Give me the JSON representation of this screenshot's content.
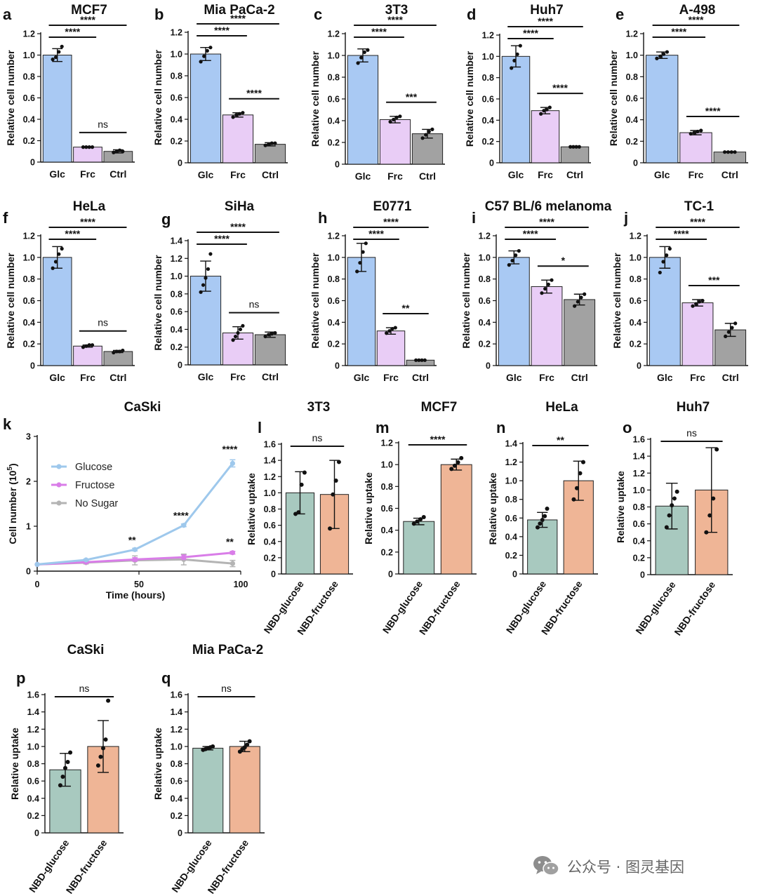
{
  "colors": {
    "glucose_bar": "#a9c9f3",
    "fructose_bar": "#e9cdf6",
    "control_bar": "#a2a2a2",
    "nbd_glucose": "#a8c9bf",
    "nbd_fructose": "#efb596",
    "line_glucose": "#9ec8ec",
    "line_fructose": "#d97de8",
    "line_nosugar": "#b4b4b4"
  },
  "watermark": {
    "text": "公众号 · 图灵基因"
  },
  "chart_data": [
    {
      "id": "a",
      "panel": "a",
      "type": "bar",
      "title": "MCF7",
      "ylabel": "Relative cell number",
      "ylim": [
        0,
        1.2
      ],
      "yticks": [
        0,
        0.2,
        0.4,
        0.6,
        0.8,
        1.0,
        1.2
      ],
      "categories": [
        "Glc",
        "Frc",
        "Ctrl"
      ],
      "values": [
        1.0,
        0.14,
        0.1
      ],
      "errors": [
        0.06,
        0.005,
        0.015
      ],
      "points": [
        [
          0.96,
          0.98,
          1.03,
          1.08
        ],
        [
          0.14,
          0.14,
          0.14,
          0.14
        ],
        [
          0.09,
          0.1,
          0.11,
          0.1
        ]
      ],
      "significance": [
        {
          "from": 0,
          "to": 2,
          "label": "****"
        },
        {
          "from": 0,
          "to": 1,
          "label": "****"
        },
        {
          "from": 1,
          "to": 2,
          "label": "ns"
        }
      ]
    },
    {
      "id": "b",
      "panel": "b",
      "type": "bar",
      "title": "Mia PaCa-2",
      "ylabel": "Relative cell number",
      "ylim": [
        0,
        1.2
      ],
      "yticks": [
        0,
        0.2,
        0.4,
        0.6,
        0.8,
        1.0,
        1.2
      ],
      "categories": [
        "Glc",
        "Frc",
        "Ctrl"
      ],
      "values": [
        1.0,
        0.44,
        0.17
      ],
      "errors": [
        0.06,
        0.02,
        0.015
      ],
      "points": [
        [
          0.93,
          0.98,
          1.03,
          1.06
        ],
        [
          0.42,
          0.44,
          0.45,
          0.46
        ],
        [
          0.16,
          0.17,
          0.18,
          0.18
        ]
      ],
      "significance": [
        {
          "from": 0,
          "to": 2,
          "label": "****"
        },
        {
          "from": 0,
          "to": 1,
          "label": "****"
        },
        {
          "from": 1,
          "to": 2,
          "label": "****"
        }
      ]
    },
    {
      "id": "c",
      "panel": "c",
      "type": "bar",
      "title": "3T3",
      "ylabel": "Relative cell number",
      "ylim": [
        0,
        1.2
      ],
      "yticks": [
        0,
        0.2,
        0.4,
        0.6,
        0.8,
        1.0,
        1.2
      ],
      "categories": [
        "Glc",
        "Frc",
        "Ctrl"
      ],
      "values": [
        1.0,
        0.41,
        0.28
      ],
      "errors": [
        0.06,
        0.03,
        0.04
      ],
      "points": [
        [
          0.93,
          0.98,
          1.03,
          1.05
        ],
        [
          0.39,
          0.41,
          0.43,
          0.44
        ],
        [
          0.24,
          0.27,
          0.3,
          0.32
        ]
      ],
      "significance": [
        {
          "from": 0,
          "to": 2,
          "label": "****"
        },
        {
          "from": 0,
          "to": 1,
          "label": "****"
        },
        {
          "from": 1,
          "to": 2,
          "label": "***"
        }
      ]
    },
    {
      "id": "d",
      "panel": "d",
      "type": "bar",
      "title": "Huh7",
      "ylabel": "Relative cell number",
      "ylim": [
        0,
        1.2
      ],
      "yticks": [
        0,
        0.2,
        0.4,
        0.6,
        0.8,
        1.0,
        1.2
      ],
      "categories": [
        "Glc",
        "Frc",
        "Ctrl"
      ],
      "values": [
        1.0,
        0.49,
        0.15
      ],
      "errors": [
        0.1,
        0.03,
        0.005
      ],
      "points": [
        [
          0.89,
          0.96,
          1.02,
          1.1
        ],
        [
          0.46,
          0.49,
          0.5,
          0.52
        ],
        [
          0.15,
          0.15,
          0.15,
          0.15
        ]
      ],
      "significance": [
        {
          "from": 0,
          "to": 2,
          "label": "****"
        },
        {
          "from": 0,
          "to": 1,
          "label": "****"
        },
        {
          "from": 1,
          "to": 2,
          "label": "****"
        }
      ]
    },
    {
      "id": "e",
      "panel": "e",
      "type": "bar",
      "title": "A-498",
      "ylabel": "Relative cell number",
      "ylim": [
        0,
        1.2
      ],
      "yticks": [
        0,
        0.2,
        0.4,
        0.6,
        0.8,
        1.0,
        1.2
      ],
      "categories": [
        "Glc",
        "Frc",
        "Ctrl"
      ],
      "values": [
        1.0,
        0.28,
        0.1
      ],
      "errors": [
        0.03,
        0.02,
        0.005
      ],
      "points": [
        [
          0.97,
          0.99,
          1.01,
          1.03
        ],
        [
          0.27,
          0.28,
          0.29,
          0.3
        ],
        [
          0.1,
          0.1,
          0.1,
          0.1
        ]
      ],
      "significance": [
        {
          "from": 0,
          "to": 2,
          "label": "****"
        },
        {
          "from": 0,
          "to": 1,
          "label": "****"
        },
        {
          "from": 1,
          "to": 2,
          "label": "****"
        }
      ]
    },
    {
      "id": "f",
      "panel": "f",
      "type": "bar",
      "title": "HeLa",
      "ylabel": "Relative cell number",
      "ylim": [
        0,
        1.2
      ],
      "yticks": [
        0,
        0.2,
        0.4,
        0.6,
        0.8,
        1.0,
        1.2
      ],
      "categories": [
        "Glc",
        "Frc",
        "Ctrl"
      ],
      "values": [
        1.0,
        0.18,
        0.13
      ],
      "errors": [
        0.1,
        0.01,
        0.01
      ],
      "points": [
        [
          0.9,
          0.96,
          1.03,
          1.08
        ],
        [
          0.17,
          0.18,
          0.19,
          0.19
        ],
        [
          0.12,
          0.13,
          0.13,
          0.14
        ]
      ],
      "significance": [
        {
          "from": 0,
          "to": 2,
          "label": "****"
        },
        {
          "from": 0,
          "to": 1,
          "label": "****"
        },
        {
          "from": 1,
          "to": 2,
          "label": "ns"
        }
      ]
    },
    {
      "id": "g",
      "panel": "g",
      "type": "bar",
      "title": "SiHa",
      "ylabel": "Relative cell number",
      "ylim": [
        0,
        1.4
      ],
      "yticks": [
        0,
        0.2,
        0.4,
        0.6,
        0.8,
        1.0,
        1.2,
        1.4
      ],
      "categories": [
        "Glc",
        "Frc",
        "Ctrl"
      ],
      "values": [
        1.0,
        0.36,
        0.34
      ],
      "errors": [
        0.17,
        0.07,
        0.03
      ],
      "points": [
        [
          0.82,
          0.9,
          0.98,
          1.08,
          1.25
        ],
        [
          0.28,
          0.32,
          0.36,
          0.4,
          0.44
        ],
        [
          0.32,
          0.34,
          0.35,
          0.36
        ]
      ],
      "significance": [
        {
          "from": 0,
          "to": 2,
          "label": "****"
        },
        {
          "from": 0,
          "to": 1,
          "label": "****"
        },
        {
          "from": 1,
          "to": 2,
          "label": "ns"
        }
      ]
    },
    {
      "id": "h",
      "panel": "h",
      "type": "bar",
      "title": "E0771",
      "ylabel": "Relative cell number",
      "ylim": [
        0,
        1.2
      ],
      "yticks": [
        0,
        0.2,
        0.4,
        0.6,
        0.8,
        1.0,
        1.2
      ],
      "categories": [
        "Glc",
        "Frc",
        "Ctrl"
      ],
      "values": [
        1.0,
        0.32,
        0.05
      ],
      "errors": [
        0.13,
        0.03,
        0.003
      ],
      "points": [
        [
          0.87,
          0.95,
          1.05,
          1.13
        ],
        [
          0.3,
          0.32,
          0.34,
          0.35
        ],
        [
          0.05,
          0.05,
          0.05,
          0.05
        ]
      ],
      "significance": [
        {
          "from": 0,
          "to": 2,
          "label": "****"
        },
        {
          "from": 0,
          "to": 1,
          "label": "****"
        },
        {
          "from": 1,
          "to": 2,
          "label": "**"
        }
      ]
    },
    {
      "id": "i",
      "panel": "i",
      "type": "bar",
      "title": "C57 BL/6 melanoma",
      "ylabel": "Relative cell number",
      "ylim": [
        0,
        1.2
      ],
      "yticks": [
        0,
        0.2,
        0.4,
        0.6,
        0.8,
        1.0,
        1.2
      ],
      "categories": [
        "Glc",
        "Frc",
        "Ctrl"
      ],
      "values": [
        1.0,
        0.73,
        0.61
      ],
      "errors": [
        0.06,
        0.06,
        0.05
      ],
      "points": [
        [
          0.93,
          0.97,
          1.02,
          1.06
        ],
        [
          0.67,
          0.71,
          0.75,
          0.79
        ],
        [
          0.55,
          0.59,
          0.63,
          0.66
        ]
      ],
      "significance": [
        {
          "from": 0,
          "to": 2,
          "label": "****"
        },
        {
          "from": 0,
          "to": 1,
          "label": "****"
        },
        {
          "from": 1,
          "to": 2,
          "label": "*"
        }
      ]
    },
    {
      "id": "j",
      "panel": "j",
      "type": "bar",
      "title": "TC-1",
      "ylabel": "Relative cell number",
      "ylim": [
        0,
        1.2
      ],
      "yticks": [
        0,
        0.2,
        0.4,
        0.6,
        0.8,
        1.0,
        1.2
      ],
      "categories": [
        "Glc",
        "Frc",
        "Ctrl"
      ],
      "values": [
        1.0,
        0.58,
        0.33
      ],
      "errors": [
        0.1,
        0.03,
        0.06
      ],
      "points": [
        [
          0.86,
          0.96,
          1.02,
          1.08
        ],
        [
          0.55,
          0.57,
          0.59,
          0.6
        ],
        [
          0.27,
          0.31,
          0.35,
          0.39
        ]
      ],
      "significance": [
        {
          "from": 0,
          "to": 2,
          "label": "****"
        },
        {
          "from": 0,
          "to": 1,
          "label": "****"
        },
        {
          "from": 1,
          "to": 2,
          "label": "***"
        }
      ]
    },
    {
      "id": "k",
      "panel": "k",
      "type": "line",
      "title": "CaSki",
      "xlabel": "Time (hours)",
      "ylabel": "Cell number (10",
      "ylabel_sup": "5",
      "ylabel_close": ")",
      "xlim": [
        0,
        100
      ],
      "ylim": [
        0,
        3
      ],
      "xticks": [
        0,
        50,
        100
      ],
      "yticks": [
        0,
        1,
        2,
        3
      ],
      "x": [
        0,
        24,
        48,
        72,
        96
      ],
      "series": [
        {
          "name": "Glucose",
          "values": [
            0.15,
            0.25,
            0.48,
            1.02,
            2.4
          ],
          "errors": [
            0.01,
            0.02,
            0.03,
            0.03,
            0.08
          ]
        },
        {
          "name": "Fructose",
          "values": [
            0.15,
            0.2,
            0.26,
            0.31,
            0.41
          ],
          "errors": [
            0.01,
            0.02,
            0.04,
            0.05,
            0.03
          ]
        },
        {
          "name": "No Sugar",
          "values": [
            0.15,
            0.19,
            0.24,
            0.26,
            0.17
          ],
          "errors": [
            0.01,
            0.03,
            0.1,
            0.12,
            0.07
          ]
        }
      ],
      "annotations": [
        {
          "x": 48,
          "y": 0.48,
          "label": "**"
        },
        {
          "x": 72,
          "y": 1.02,
          "label": "****"
        },
        {
          "x": 96,
          "y": 2.5,
          "label": "****"
        },
        {
          "x": 96,
          "y": 0.44,
          "label": "**"
        }
      ]
    },
    {
      "id": "l",
      "panel": "l",
      "type": "bar",
      "title": "3T3",
      "ylabel": "Relative uptake",
      "ylim": [
        0,
        1.6
      ],
      "yticks": [
        0,
        0.2,
        0.4,
        0.6,
        0.8,
        1.0,
        1.2,
        1.4,
        1.6
      ],
      "categories": [
        "NBD-glucose",
        "NBD-fructose"
      ],
      "values": [
        1.0,
        0.98
      ],
      "errors": [
        0.26,
        0.42
      ],
      "points": [
        [
          0.74,
          0.76,
          1.1,
          1.25
        ],
        [
          0.56,
          0.98,
          1.15,
          1.38
        ]
      ],
      "significance": [
        {
          "from": 0,
          "to": 1,
          "label": "ns"
        }
      ]
    },
    {
      "id": "m",
      "panel": "m",
      "type": "bar",
      "title": "MCF7",
      "ylabel": "Relative uptake",
      "ylim": [
        0,
        1.2
      ],
      "yticks": [
        0,
        0.2,
        0.4,
        0.6,
        0.8,
        1.0,
        1.2
      ],
      "categories": [
        "NBD-glucose",
        "NBD-fructose"
      ],
      "values": [
        0.48,
        1.0
      ],
      "errors": [
        0.03,
        0.05
      ],
      "points": [
        [
          0.46,
          0.48,
          0.5,
          0.52
        ],
        [
          0.96,
          0.99,
          1.02,
          1.06
        ]
      ],
      "significance": [
        {
          "from": 0,
          "to": 1,
          "label": "****"
        }
      ]
    },
    {
      "id": "n",
      "panel": "n",
      "type": "bar",
      "title": "HeLa",
      "ylabel": "Relative uptake",
      "ylim": [
        0,
        1.4
      ],
      "yticks": [
        0,
        0.2,
        0.4,
        0.6,
        0.8,
        1.0,
        1.2,
        1.4
      ],
      "categories": [
        "NBD-glucose",
        "NBD-fructose"
      ],
      "values": [
        0.58,
        1.0
      ],
      "errors": [
        0.08,
        0.21
      ],
      "points": [
        [
          0.5,
          0.54,
          0.58,
          0.62,
          0.7
        ],
        [
          0.8,
          0.92,
          1.08,
          1.2
        ]
      ],
      "significance": [
        {
          "from": 0,
          "to": 1,
          "label": "**"
        }
      ]
    },
    {
      "id": "o",
      "panel": "o",
      "type": "bar",
      "title": "Huh7",
      "ylabel": "Relative uptake",
      "ylim": [
        0,
        1.6
      ],
      "yticks": [
        0,
        0.2,
        0.4,
        0.6,
        0.8,
        1.0,
        1.2,
        1.4,
        1.6
      ],
      "categories": [
        "NBD-glucose",
        "NBD-fructose"
      ],
      "values": [
        0.81,
        1.0
      ],
      "errors": [
        0.27,
        0.5
      ],
      "points": [
        [
          0.56,
          0.7,
          0.82,
          0.9,
          0.98
        ],
        [
          0.5,
          0.7,
          0.9,
          1.48
        ]
      ],
      "significance": [
        {
          "from": 0,
          "to": 1,
          "label": "ns"
        }
      ]
    },
    {
      "id": "p",
      "panel": "p",
      "type": "bar",
      "title": "CaSki",
      "ylabel": "Relative uptake",
      "ylim": [
        0,
        1.6
      ],
      "yticks": [
        0,
        0.2,
        0.4,
        0.6,
        0.8,
        1.0,
        1.2,
        1.4,
        1.6
      ],
      "categories": [
        "NBD-glucose",
        "NBD-fructose"
      ],
      "values": [
        0.73,
        1.0
      ],
      "errors": [
        0.19,
        0.3
      ],
      "points": [
        [
          0.55,
          0.65,
          0.75,
          0.82,
          0.93
        ],
        [
          0.78,
          0.88,
          0.98,
          1.08,
          1.53
        ]
      ],
      "significance": [
        {
          "from": 0,
          "to": 1,
          "label": "ns"
        }
      ]
    },
    {
      "id": "q",
      "panel": "q",
      "type": "bar",
      "title": "Mia PaCa-2",
      "ylabel": "Relative uptake",
      "ylim": [
        0,
        1.6
      ],
      "yticks": [
        0,
        0.2,
        0.4,
        0.6,
        0.8,
        1.0,
        1.2,
        1.4,
        1.6
      ],
      "categories": [
        "NBD-glucose",
        "NBD-fructose"
      ],
      "values": [
        0.98,
        1.0
      ],
      "errors": [
        0.02,
        0.06
      ],
      "points": [
        [
          0.96,
          0.97,
          0.98,
          0.99,
          1.0
        ],
        [
          0.94,
          0.97,
          0.99,
          1.02,
          1.06
        ]
      ],
      "significance": [
        {
          "from": 0,
          "to": 1,
          "label": "ns"
        }
      ]
    }
  ]
}
